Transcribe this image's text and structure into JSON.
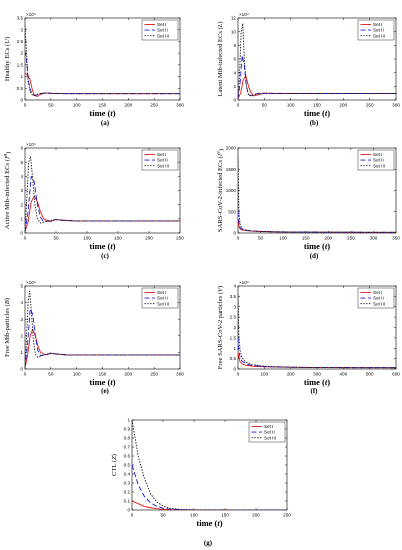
{
  "chart_data": [
    {
      "id": "a",
      "type": "line",
      "panel_label": "(a)",
      "ylabel": "Healthy ECs (U)",
      "xlabel": "time (t)",
      "exponent": "×10⁴",
      "xlim": [
        0,
        300
      ],
      "xticks": [
        0,
        50,
        100,
        150,
        200,
        250,
        300
      ],
      "ylim": [
        0,
        3.5
      ],
      "yticks": [
        0,
        0.5,
        1,
        1.5,
        2,
        2.5,
        3,
        3.5
      ],
      "yticklabels": [
        "0",
        "0.5",
        "1",
        "1.5",
        "2",
        "2.5",
        "3",
        "3.5"
      ],
      "series": [
        {
          "name": "Set I",
          "x": [
            0,
            3,
            6,
            10,
            14,
            18,
            24,
            30,
            40,
            55,
            80,
            120,
            300
          ],
          "values": [
            1.15,
            1.1,
            1.05,
            0.85,
            0.45,
            0.2,
            0.15,
            0.25,
            0.3,
            0.28,
            0.27,
            0.27,
            0.27
          ]
        },
        {
          "name": "Set II",
          "x": [
            0,
            3,
            6,
            10,
            14,
            18,
            24,
            30,
            40,
            55,
            80,
            120,
            300
          ],
          "values": [
            2.1,
            1.7,
            0.9,
            0.45,
            0.25,
            0.2,
            0.22,
            0.28,
            0.3,
            0.28,
            0.27,
            0.27,
            0.27
          ]
        },
        {
          "name": "Set III",
          "x": [
            0,
            3,
            6,
            10,
            14,
            18,
            24,
            30,
            40,
            55,
            80,
            120,
            300
          ],
          "values": [
            3.2,
            2.0,
            0.8,
            0.35,
            0.22,
            0.2,
            0.24,
            0.28,
            0.29,
            0.28,
            0.27,
            0.27,
            0.27
          ]
        }
      ]
    },
    {
      "id": "b",
      "type": "line",
      "panel_label": "(b)",
      "ylabel": "Latent Mtb-infected ECs (L)",
      "xlabel": "time (t)",
      "exponent": "×10⁴",
      "xlim": [
        0,
        300
      ],
      "xticks": [
        0,
        50,
        100,
        150,
        200,
        250,
        300
      ],
      "ylim": [
        0,
        12
      ],
      "yticks": [
        0,
        2,
        4,
        6,
        8,
        10,
        12
      ],
      "yticklabels": [
        "0",
        "2",
        "4",
        "6",
        "8",
        "10",
        "12"
      ],
      "series": [
        {
          "name": "Set I",
          "x": [
            0,
            5,
            10,
            15,
            20,
            25,
            30,
            40,
            50,
            70,
            100,
            300
          ],
          "values": [
            0.2,
            1.0,
            3.0,
            3.5,
            2.0,
            1.0,
            0.6,
            0.8,
            1.0,
            0.95,
            0.95,
            0.95
          ]
        },
        {
          "name": "Set II",
          "x": [
            0,
            4,
            8,
            12,
            16,
            20,
            25,
            30,
            40,
            60,
            100,
            300
          ],
          "values": [
            0.2,
            2.5,
            6.5,
            5.0,
            2.0,
            0.8,
            0.6,
            0.8,
            1.0,
            0.95,
            0.95,
            0.95
          ]
        },
        {
          "name": "Set III",
          "x": [
            0,
            3,
            6,
            9,
            12,
            16,
            20,
            25,
            35,
            50,
            100,
            300
          ],
          "values": [
            0.2,
            4.0,
            10.0,
            11.2,
            6.0,
            2.0,
            0.7,
            0.6,
            0.9,
            1.0,
            0.95,
            0.95
          ]
        }
      ]
    },
    {
      "id": "c",
      "type": "line",
      "panel_label": "(c)",
      "ylabel": "Active Mtb-infected ECs (I^B)",
      "xlabel": "time (t)",
      "exponent": "×10⁴",
      "xlim": [
        0,
        250
      ],
      "xticks": [
        0,
        50,
        100,
        150,
        200,
        250
      ],
      "ylim": [
        0,
        6
      ],
      "yticks": [
        0,
        1,
        2,
        3,
        4,
        5,
        6
      ],
      "yticklabels": [
        "0",
        "1",
        "2",
        "3",
        "4",
        "5",
        "6"
      ],
      "series": [
        {
          "name": "Set I",
          "x": [
            0,
            5,
            10,
            15,
            20,
            25,
            30,
            40,
            50,
            60,
            80,
            250
          ],
          "values": [
            0.1,
            0.8,
            2.2,
            2.6,
            2.2,
            1.5,
            1.0,
            0.8,
            0.95,
            0.9,
            0.85,
            0.85
          ]
        },
        {
          "name": "Set II",
          "x": [
            0,
            5,
            10,
            15,
            20,
            25,
            30,
            40,
            50,
            60,
            80,
            250
          ],
          "values": [
            0.1,
            1.5,
            4.0,
            3.6,
            2.0,
            1.1,
            0.8,
            0.85,
            0.95,
            0.9,
            0.85,
            0.85
          ]
        },
        {
          "name": "Set III",
          "x": [
            0,
            3,
            6,
            9,
            12,
            16,
            20,
            25,
            35,
            50,
            80,
            250
          ],
          "values": [
            0.1,
            2.5,
            5.0,
            5.4,
            4.0,
            2.0,
            1.0,
            0.7,
            0.85,
            0.95,
            0.85,
            0.85
          ]
        }
      ]
    },
    {
      "id": "d",
      "type": "line",
      "panel_label": "(d)",
      "ylabel": "SARS-CoV-2-infected ECs (I^V)",
      "xlabel": "time (t)",
      "exponent": "",
      "xlim": [
        0,
        350
      ],
      "xticks": [
        0,
        50,
        100,
        150,
        200,
        250,
        300,
        350
      ],
      "ylim": [
        0,
        2000
      ],
      "yticks": [
        0,
        500,
        1000,
        1500,
        2000
      ],
      "yticklabels": [
        "0",
        "500",
        "1000",
        "1500",
        "2000"
      ],
      "series": [
        {
          "name": "Set I",
          "x": [
            0,
            2,
            5,
            10,
            20,
            30,
            50,
            80,
            120,
            350
          ],
          "values": [
            300,
            150,
            90,
            70,
            55,
            45,
            35,
            28,
            22,
            15
          ]
        },
        {
          "name": "Set II",
          "x": [
            0,
            2,
            5,
            10,
            20,
            30,
            50,
            80,
            120,
            350
          ],
          "values": [
            500,
            250,
            120,
            80,
            60,
            48,
            36,
            28,
            22,
            15
          ]
        },
        {
          "name": "Set III",
          "x": [
            0,
            2,
            5,
            10,
            20,
            30,
            50,
            80,
            120,
            350
          ],
          "values": [
            1800,
            500,
            180,
            100,
            65,
            50,
            38,
            29,
            22,
            15
          ]
        }
      ]
    },
    {
      "id": "e",
      "type": "line",
      "panel_label": "(e)",
      "ylabel": "Free Mtb-particles (B)",
      "xlabel": "time (t)",
      "exponent": "×10⁴",
      "xlim": [
        0,
        300
      ],
      "xticks": [
        0,
        50,
        100,
        150,
        200,
        250,
        300
      ],
      "ylim": [
        0,
        5
      ],
      "yticks": [
        0,
        1,
        2,
        3,
        4,
        5
      ],
      "yticklabels": [
        "0",
        "1",
        "2",
        "3",
        "4",
        "5"
      ],
      "series": [
        {
          "name": "Set I",
          "x": [
            0,
            5,
            10,
            15,
            20,
            25,
            30,
            40,
            50,
            60,
            80,
            300
          ],
          "values": [
            0.1,
            0.8,
            2.0,
            2.4,
            2.0,
            1.4,
            1.0,
            0.85,
            0.95,
            0.9,
            0.85,
            0.85
          ]
        },
        {
          "name": "Set II",
          "x": [
            0,
            5,
            10,
            15,
            20,
            25,
            30,
            40,
            50,
            60,
            80,
            300
          ],
          "values": [
            0.1,
            1.5,
            3.6,
            3.3,
            2.0,
            1.1,
            0.8,
            0.85,
            0.95,
            0.9,
            0.85,
            0.85
          ]
        },
        {
          "name": "Set III",
          "x": [
            0,
            3,
            6,
            9,
            12,
            16,
            20,
            25,
            35,
            50,
            80,
            300
          ],
          "values": [
            0.1,
            2.0,
            4.0,
            4.7,
            3.6,
            1.8,
            0.9,
            0.7,
            0.85,
            0.95,
            0.85,
            0.85
          ]
        }
      ]
    },
    {
      "id": "f",
      "type": "line",
      "panel_label": "(f)",
      "ylabel": "Free SARS-CoV-2 particles (V)",
      "xlabel": "time (t)",
      "exponent": "×10⁴",
      "xlim": [
        0,
        600
      ],
      "xticks": [
        0,
        100,
        200,
        300,
        400,
        500,
        600
      ],
      "ylim": [
        0,
        4
      ],
      "yticks": [
        0,
        0.5,
        1,
        1.5,
        2,
        2.5,
        3,
        3.5,
        4
      ],
      "yticklabels": [
        "0",
        "0.5",
        "1",
        "1.5",
        "2",
        "2.5",
        "3",
        "3.5",
        "4"
      ],
      "series": [
        {
          "name": "Set I",
          "x": [
            0,
            3,
            8,
            15,
            30,
            50,
            80,
            120,
            200,
            300,
            600
          ],
          "values": [
            0.8,
            0.55,
            0.35,
            0.25,
            0.18,
            0.14,
            0.12,
            0.1,
            0.08,
            0.07,
            0.06
          ]
        },
        {
          "name": "Set II",
          "x": [
            0,
            3,
            8,
            15,
            30,
            50,
            80,
            120,
            200,
            300,
            600
          ],
          "values": [
            1.5,
            0.9,
            0.55,
            0.38,
            0.25,
            0.18,
            0.14,
            0.11,
            0.09,
            0.07,
            0.06
          ]
        },
        {
          "name": "Set III",
          "x": [
            0,
            3,
            8,
            15,
            30,
            50,
            80,
            120,
            200,
            300,
            600
          ],
          "values": [
            3.6,
            1.6,
            0.9,
            0.55,
            0.32,
            0.22,
            0.16,
            0.12,
            0.09,
            0.07,
            0.06
          ]
        }
      ]
    },
    {
      "id": "g",
      "type": "line",
      "panel_label": "(g)",
      "ylabel": "CTL (Z)",
      "xlabel": "time (t)",
      "exponent": "",
      "xlim": [
        0,
        250
      ],
      "xticks": [
        0,
        50,
        100,
        150,
        200,
        250
      ],
      "ylim": [
        0,
        1
      ],
      "yticks": [
        0,
        0.1,
        0.2,
        0.3,
        0.4,
        0.5,
        0.6,
        0.7,
        0.8,
        0.9,
        1
      ],
      "yticklabels": [
        "0",
        "0.1",
        "0.2",
        "0.3",
        "0.4",
        "0.5",
        "0.6",
        "0.7",
        "0.8",
        "0.9",
        "1"
      ],
      "series": [
        {
          "name": "Set I",
          "x": [
            0,
            10,
            20,
            30,
            40,
            50,
            60,
            80,
            100,
            250
          ],
          "values": [
            0.1,
            0.07,
            0.04,
            0.025,
            0.015,
            0.008,
            0.005,
            0.002,
            0.001,
            0
          ]
        },
        {
          "name": "Set II",
          "x": [
            0,
            10,
            20,
            30,
            40,
            50,
            60,
            80,
            100,
            250
          ],
          "values": [
            0.5,
            0.28,
            0.15,
            0.08,
            0.04,
            0.02,
            0.01,
            0.003,
            0.001,
            0
          ]
        },
        {
          "name": "Set III",
          "x": [
            0,
            10,
            20,
            30,
            40,
            50,
            60,
            80,
            100,
            250
          ],
          "values": [
            1.0,
            0.6,
            0.35,
            0.18,
            0.09,
            0.045,
            0.02,
            0.006,
            0.002,
            0
          ]
        }
      ]
    }
  ],
  "legend_names": [
    "Set I",
    "Set II",
    "Set III"
  ],
  "series_colors": [
    "#e01818",
    "#1a1ad8",
    "#111111"
  ],
  "series_dashes": [
    "",
    "5,2.5",
    "1.4,1.4"
  ],
  "legend_position": "top-right",
  "grid": false
}
